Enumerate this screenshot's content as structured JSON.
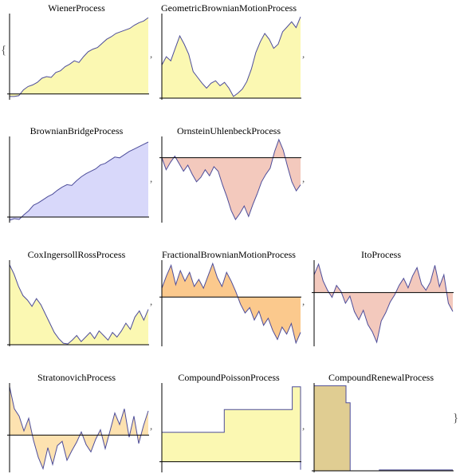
{
  "brace_open": "{",
  "brace_close": "}",
  "separator": ",",
  "colors": {
    "stroke": "#4d4d9a",
    "yellow_fill": "#fbf8b2",
    "blue_fill": "#d8d8fa",
    "pink_fill": "#f3c9bd",
    "orange_fill": "#fbc98d",
    "light_orange_fill": "#fde2b0",
    "tan_fill": "#e0cd92",
    "axis": "#000000"
  },
  "plots": [
    {
      "title": "WienerProcess",
      "fill": "yellow_fill",
      "values": [
        -0.3,
        -0.3,
        -0.2,
        0.5,
        0.9,
        1.1,
        1.4,
        1.9,
        2.1,
        2.0,
        2.6,
        2.8,
        3.3,
        3.6,
        4.0,
        3.8,
        4.5,
        5.1,
        5.4,
        5.6,
        6.1,
        6.6,
        6.9,
        7.3,
        7.5,
        7.7,
        7.9,
        8.3,
        8.6,
        8.8,
        9.2
      ],
      "ymin": -0.5,
      "ymax": 9.5,
      "zero": 0
    },
    {
      "title": "GeometricBrownianMotionProcess",
      "fill": "yellow_fill",
      "values": [
        4,
        5,
        4.5,
        6,
        7.5,
        6.5,
        5.3,
        3.2,
        2.5,
        1.8,
        1.2,
        1.8,
        2.1,
        1.5,
        1.9,
        1.2,
        0.2,
        0.6,
        1.1,
        2.0,
        3.5,
        5.5,
        6.8,
        7.8,
        7.1,
        6.0,
        6.5,
        8.0,
        8.6,
        9.2,
        8.5,
        9.8
      ],
      "ymin": 0,
      "ymax": 10,
      "zero": 0
    },
    {
      "title": "BrownianBridgeProcess",
      "fill": "blue_fill",
      "values": [
        -0.4,
        -0.2,
        -0.3,
        0.3,
        0.8,
        1.5,
        1.8,
        2.2,
        2.6,
        2.9,
        3.4,
        3.8,
        4.1,
        4.0,
        4.6,
        5.1,
        5.5,
        5.8,
        6.1,
        6.6,
        6.8,
        7.2,
        7.6,
        7.5,
        7.9,
        8.3,
        8.6,
        8.9,
        9.2,
        9.5
      ],
      "ymin": -0.5,
      "ymax": 10,
      "zero": 0
    },
    {
      "title": "OrnsteinUhlenbeckProcess",
      "fill": "pink_fill",
      "values": [
        0,
        -0.8,
        -0.3,
        0.1,
        -0.4,
        -0.9,
        -0.5,
        -1.1,
        -1.6,
        -1.3,
        -0.8,
        -1.2,
        -0.6,
        -0.9,
        -1.8,
        -2.6,
        -3.5,
        -4.1,
        -3.7,
        -3.2,
        -3.9,
        -3.1,
        -2.4,
        -1.6,
        -1.1,
        -0.7,
        0.4,
        1.2,
        0.5,
        -0.6,
        -1.6,
        -2.2,
        -1.8
      ],
      "ymin": -4.2,
      "ymax": 1.3,
      "zero": 0
    },
    {
      "title": "CoxIngersollRossProcess",
      "fill": "yellow_fill",
      "values": [
        5.2,
        4.6,
        3.8,
        3.2,
        2.9,
        2.5,
        3.0,
        2.6,
        2.0,
        1.4,
        0.8,
        0.4,
        0.1,
        0.05,
        0.3,
        0.6,
        0.2,
        0.5,
        0.8,
        0.4,
        0.9,
        0.6,
        0.3,
        0.8,
        0.5,
        0.9,
        1.4,
        1.0,
        1.8,
        2.2,
        1.6,
        2.3
      ],
      "ymin": 0,
      "ymax": 5.4,
      "zero": 0
    },
    {
      "title": "FractionalBrownianMotionProcess",
      "fill": "orange_fill",
      "values": [
        0.5,
        1.2,
        1.8,
        0.7,
        1.5,
        0.9,
        1.4,
        0.6,
        1.0,
        0.5,
        1.2,
        1.9,
        1.1,
        0.6,
        1.4,
        0.9,
        0.3,
        -0.4,
        -0.9,
        -0.6,
        -1.3,
        -0.8,
        -1.6,
        -1.2,
        -1.9,
        -2.4,
        -1.7,
        -2.1,
        -1.5,
        -2.6,
        -2.0
      ],
      "ymin": -2.7,
      "ymax": 2.0,
      "zero": 0
    },
    {
      "title": "ItoProcess",
      "fill": "pink_fill",
      "values": [
        1.5,
        2.4,
        1.0,
        0.2,
        -0.4,
        0.6,
        0.1,
        -0.9,
        -0.3,
        -1.6,
        -2.3,
        -1.5,
        -2.7,
        -3.3,
        -4.2,
        -2.4,
        -1.7,
        -0.8,
        -0.2,
        0.6,
        1.2,
        0.4,
        1.4,
        2.1,
        0.7,
        0.2,
        0.9,
        2.3,
        0.5,
        1.5,
        -0.9,
        -1.6
      ],
      "ymin": -4.4,
      "ymax": 2.6,
      "zero": 0
    },
    {
      "title": "StratonovichProcess",
      "fill": "light_orange_fill",
      "values": [
        4.6,
        2.5,
        1.8,
        0.4,
        1.6,
        -0.5,
        -2.1,
        -3.2,
        -1.2,
        -2.8,
        -1.0,
        -0.6,
        -2.4,
        -1.5,
        -0.7,
        0.3,
        -0.9,
        -1.6,
        -0.4,
        0.5,
        -1.3,
        0.4,
        2.1,
        1.0,
        2.5,
        -0.2,
        1.8,
        -0.8,
        0.9,
        2.3
      ],
      "ymin": -3.4,
      "ymax": 4.8,
      "zero": 0
    },
    {
      "title": "CompoundPoissonProcess",
      "type": "step",
      "fill": "yellow_fill",
      "steps": [
        [
          0,
          1.3
        ],
        [
          0.45,
          2.3
        ],
        [
          0.94,
          3.3
        ],
        [
          1.0,
          -0.35
        ]
      ],
      "ymin": -0.4,
      "ymax": 3.4,
      "zero": 0
    },
    {
      "title": "CompoundRenewalProcess",
      "type": "step",
      "fill": "tan_fill",
      "steps": [
        [
          0,
          7.5
        ],
        [
          0.23,
          6.0
        ],
        [
          0.26,
          0.0
        ],
        [
          0.47,
          0.08
        ],
        [
          1.0,
          0.08
        ]
      ],
      "ymin": 0,
      "ymax": 7.6,
      "zero": 0
    }
  ]
}
